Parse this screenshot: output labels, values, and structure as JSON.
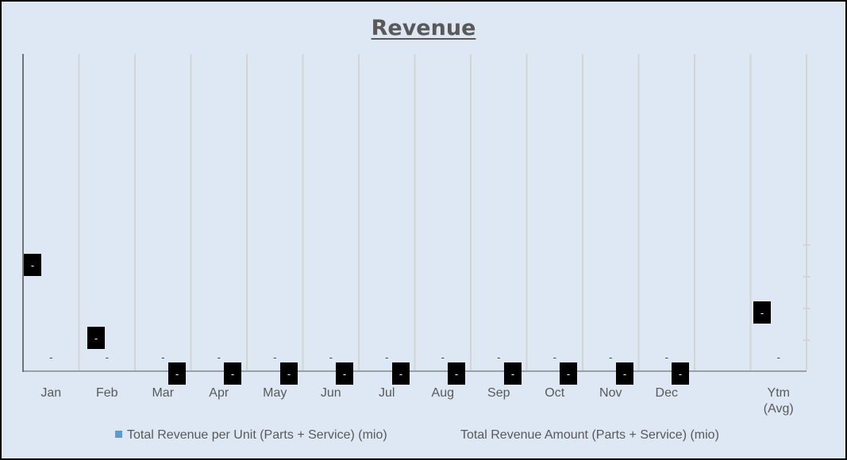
{
  "chart_data": {
    "type": "bar",
    "title": "Revenue",
    "xlabel": "",
    "ylabel": "",
    "categories": [
      "Jan",
      "Feb",
      "Mar",
      "Apr",
      "May",
      "Jun",
      "Jul",
      "Aug",
      "Sep",
      "Oct",
      "Nov",
      "Dec",
      "",
      "Ytm (Avg)"
    ],
    "series": [
      {
        "name": "Total Revenue per Unit  (Parts + Service) (mio)",
        "values": [
          0,
          0,
          0,
          0,
          0,
          0,
          0,
          0,
          0,
          0,
          0,
          0,
          null,
          0
        ],
        "labels": [
          "-",
          "-",
          "-",
          "-",
          "-",
          "-",
          "-",
          "-",
          "-",
          "-",
          "-",
          "-",
          null,
          "-"
        ],
        "color": "#5b9bd5"
      },
      {
        "name": "Total Revenue Amount (Parts + Service)  (mio)",
        "values": [
          0,
          0,
          0,
          0,
          0,
          0,
          0,
          0,
          0,
          0,
          0,
          0,
          null,
          0
        ],
        "labels": [
          "-",
          "-",
          "-",
          "-",
          "-",
          "-",
          "-",
          "-",
          "-",
          "-",
          "-",
          "-",
          null,
          "-"
        ],
        "label_style": "black-box"
      }
    ],
    "grid": true,
    "legend_position": "bottom"
  }
}
